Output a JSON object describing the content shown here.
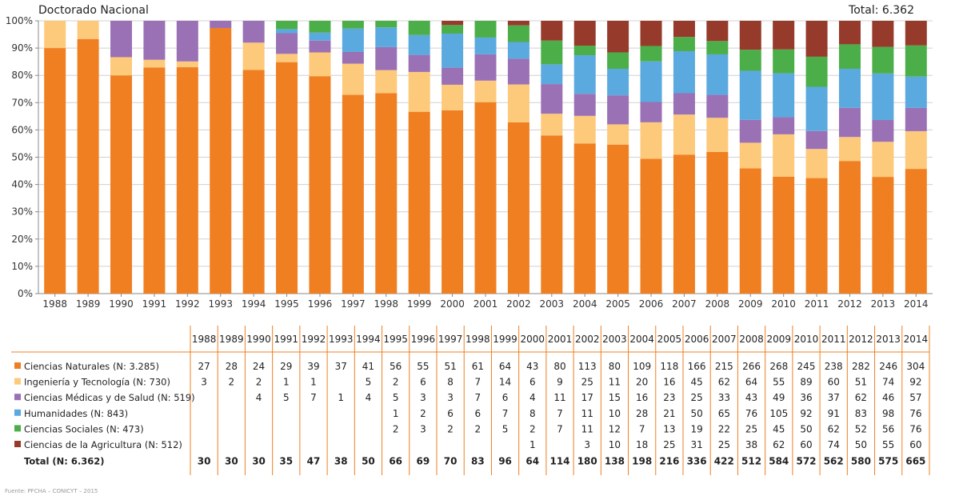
{
  "header": {
    "title": "Doctorado Nacional",
    "total": "Total: 6.362"
  },
  "source": "Fuente: PFCHA – CONICYT – 2015",
  "colors": {
    "Ciencias Naturales": "#f07f22",
    "Ingeniería y Tecnología": "#fdc97b",
    "Ciencias Médicas y de Salud": "#9a71b5",
    "Humanidades": "#5aa9df",
    "Ciencias Sociales": "#4cae48",
    "Ciencias de la Agricultura": "#963a2c",
    "table_rule": "#f07f22"
  },
  "chart_data": {
    "type": "bar",
    "stacked": true,
    "normalized": true,
    "title": "Doctorado Nacional",
    "ylim": [
      0,
      100
    ],
    "yticks": [
      "0%",
      "10%",
      "20%",
      "30%",
      "40%",
      "50%",
      "60%",
      "70%",
      "80%",
      "90%",
      "100%"
    ],
    "grid": true,
    "categories": [
      "1988",
      "1989",
      "1990",
      "1991",
      "1992",
      "1993",
      "1994",
      "1995",
      "1996",
      "1997",
      "1998",
      "1999",
      "2000",
      "2001",
      "2002",
      "2003",
      "2004",
      "2005",
      "2006",
      "2007",
      "2008",
      "2009",
      "2010",
      "2011",
      "2012",
      "2013",
      "2014"
    ],
    "series": [
      {
        "name": "Ciencias Naturales",
        "legend": "Ciencias Naturales (N: 3.285)",
        "values": [
          27,
          28,
          24,
          29,
          39,
          37,
          41,
          56,
          55,
          51,
          61,
          64,
          43,
          80,
          113,
          80,
          109,
          118,
          166,
          215,
          266,
          268,
          245,
          238,
          282,
          246,
          304
        ]
      },
      {
        "name": "Ingeniería y Tecnología",
        "legend": "Ingeniería y Tecnología (N: 730)",
        "values": [
          3,
          2,
          2,
          1,
          1,
          null,
          5,
          2,
          6,
          8,
          7,
          14,
          6,
          9,
          25,
          11,
          20,
          16,
          45,
          62,
          64,
          55,
          89,
          60,
          51,
          74,
          92
        ]
      },
      {
        "name": "Ciencias Médicas y de Salud",
        "legend": "Ciencias Médicas y de Salud (N: 519)",
        "values": [
          null,
          null,
          4,
          5,
          7,
          1,
          4,
          5,
          3,
          3,
          7,
          6,
          4,
          11,
          17,
          15,
          16,
          23,
          25,
          33,
          43,
          49,
          36,
          37,
          62,
          46,
          57
        ]
      },
      {
        "name": "Humanidades",
        "legend": "Humanidades (N: 843)",
        "values": [
          null,
          null,
          null,
          null,
          null,
          null,
          null,
          1,
          2,
          6,
          6,
          7,
          8,
          7,
          11,
          10,
          28,
          21,
          50,
          65,
          76,
          105,
          92,
          91,
          83,
          98,
          76
        ]
      },
      {
        "name": "Ciencias Sociales",
        "legend": "Ciencias Sociales (N: 473)",
        "values": [
          null,
          null,
          null,
          null,
          null,
          null,
          null,
          2,
          3,
          2,
          2,
          5,
          2,
          7,
          11,
          12,
          7,
          13,
          19,
          22,
          25,
          45,
          50,
          62,
          52,
          56,
          76
        ]
      },
      {
        "name": "Ciencias de la Agricultura",
        "legend": "Ciencias de la Agricultura (N: 512)",
        "values": [
          null,
          null,
          null,
          null,
          null,
          null,
          null,
          null,
          null,
          null,
          null,
          null,
          1,
          null,
          3,
          10,
          18,
          25,
          31,
          25,
          38,
          62,
          60,
          74,
          50,
          55,
          60
        ]
      }
    ],
    "totals": {
      "label": "Total (N: 6.362)",
      "values": [
        30,
        30,
        30,
        35,
        47,
        38,
        50,
        66,
        69,
        70,
        83,
        96,
        64,
        114,
        180,
        138,
        198,
        216,
        336,
        422,
        512,
        584,
        572,
        562,
        580,
        575,
        665
      ]
    }
  }
}
